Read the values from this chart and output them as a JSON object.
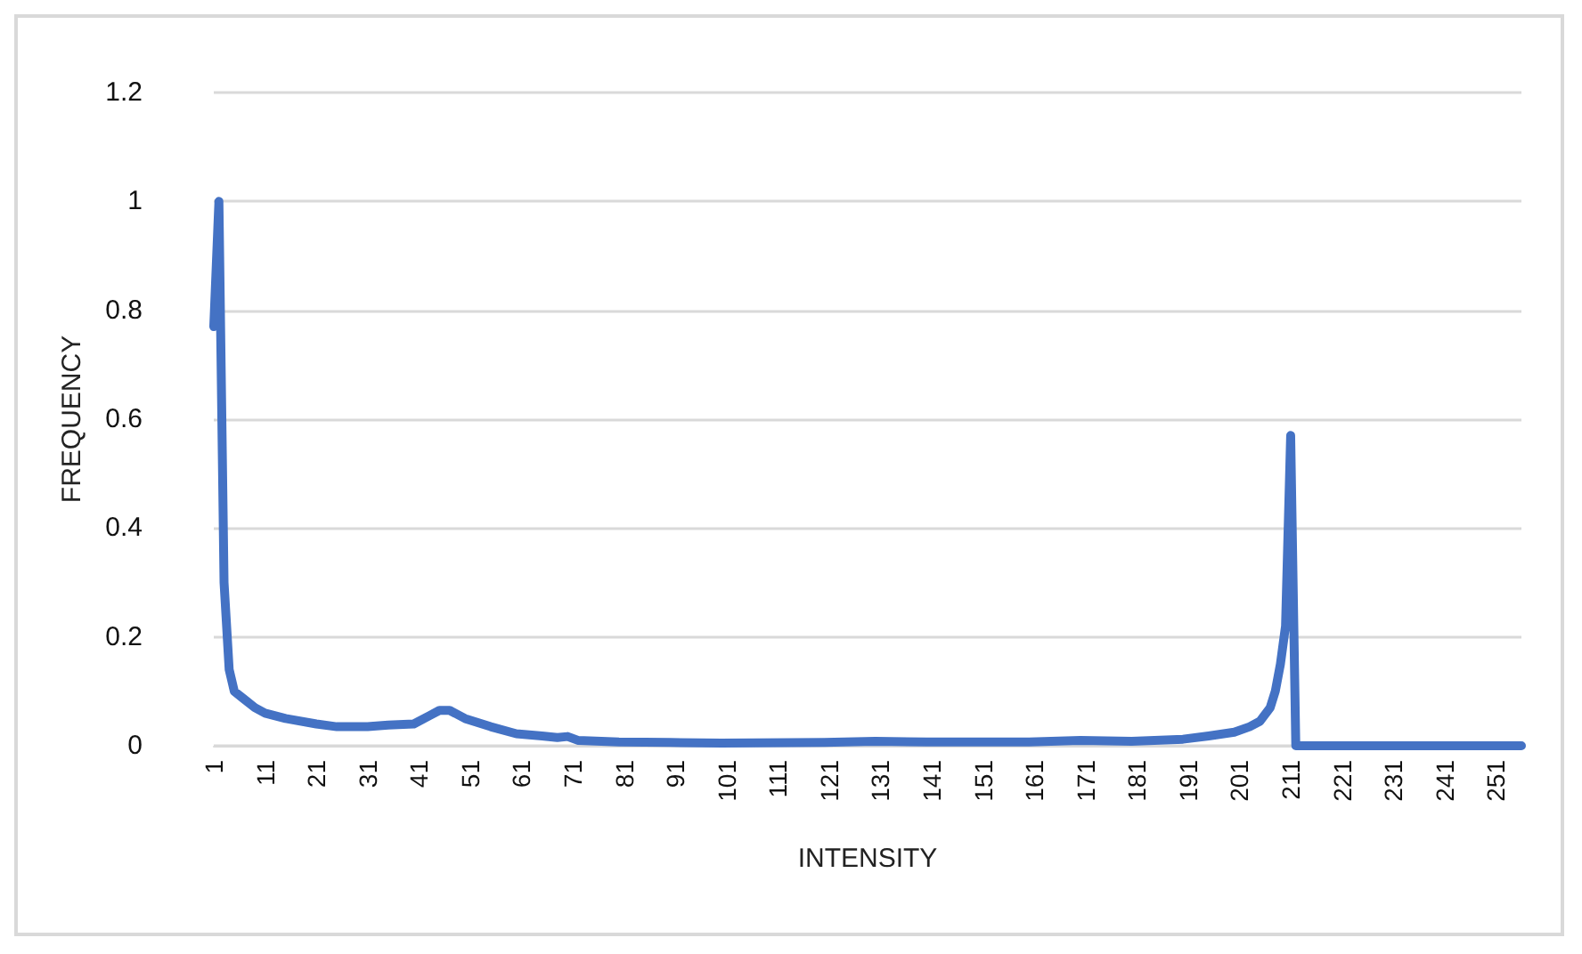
{
  "chart_data": {
    "type": "line",
    "xlabel": "INTENSITY",
    "ylabel": "FREQUENCY",
    "xlim": [
      1,
      256
    ],
    "xticks": [
      1,
      11,
      21,
      31,
      41,
      51,
      61,
      71,
      81,
      91,
      101,
      111,
      121,
      131,
      141,
      151,
      161,
      171,
      181,
      191,
      201,
      211,
      221,
      231,
      241,
      251
    ],
    "ylim": [
      0,
      1.2
    ],
    "yticks": [
      0,
      0.2,
      0.4,
      0.6,
      0.8,
      1,
      1.2
    ],
    "grid": "y",
    "marker": "none",
    "line_style": "solid",
    "series": [
      {
        "color": "#4472c4",
        "x": [
          1,
          2,
          3,
          4,
          5,
          7,
          9,
          11,
          15,
          21,
          25,
          31,
          35,
          40,
          43,
          45,
          47,
          50,
          55,
          60,
          65,
          68,
          70,
          72,
          80,
          90,
          100,
          120,
          130,
          140,
          160,
          170,
          180,
          190,
          195,
          200,
          203,
          205,
          207,
          208,
          209,
          210,
          211,
          212,
          256
        ],
        "values": [
          0.77,
          1.0,
          0.3,
          0.14,
          0.1,
          0.085,
          0.07,
          0.06,
          0.05,
          0.04,
          0.035,
          0.035,
          0.038,
          0.04,
          0.055,
          0.065,
          0.065,
          0.05,
          0.035,
          0.022,
          0.018,
          0.015,
          0.017,
          0.01,
          0.007,
          0.006,
          0.005,
          0.006,
          0.008,
          0.007,
          0.007,
          0.01,
          0.008,
          0.012,
          0.018,
          0.025,
          0.035,
          0.045,
          0.07,
          0.1,
          0.15,
          0.22,
          0.57,
          0,
          0
        ]
      }
    ]
  }
}
